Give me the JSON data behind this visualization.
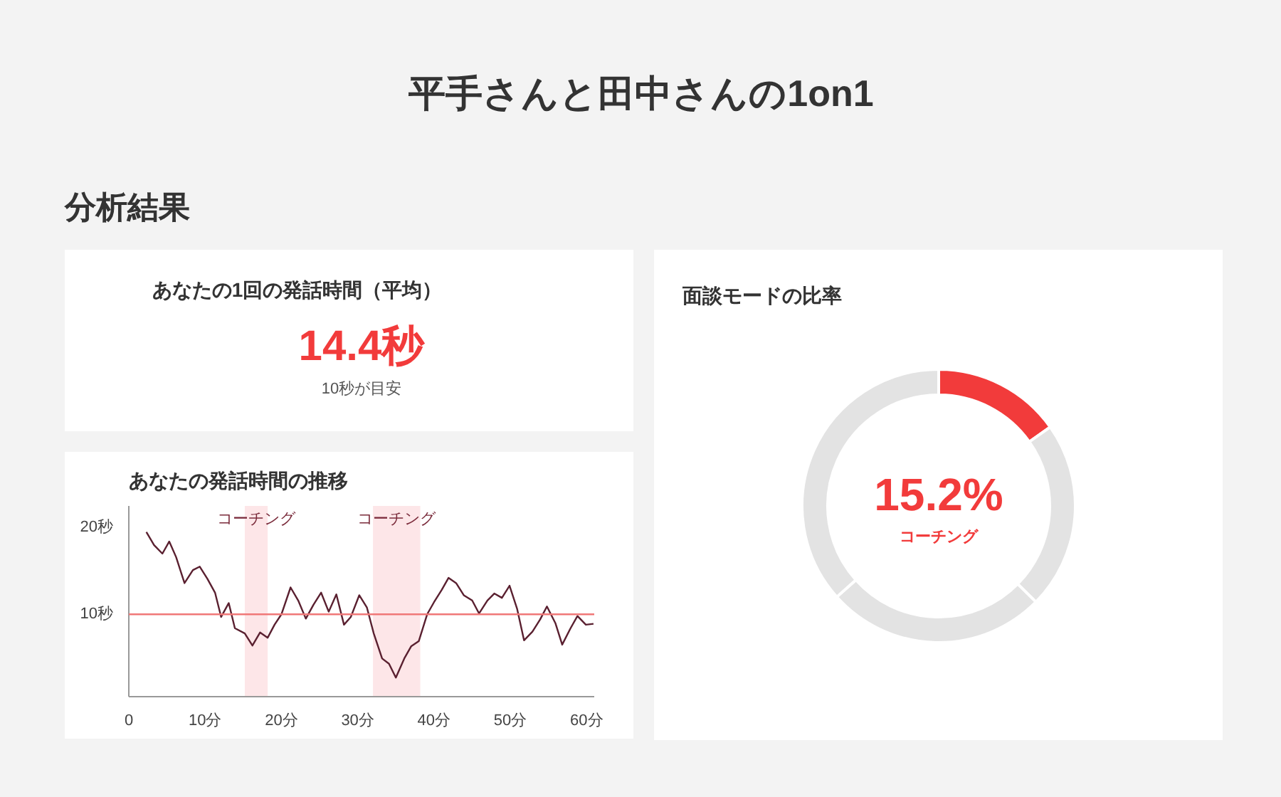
{
  "chart_data": [
    {
      "type": "other",
      "title": "平手さんと田中さんの1on1",
      "subtitle": "分析結果"
    },
    {
      "type": "other",
      "title": "あなたの1回の発話時間（平均）",
      "annotations": [
        "14.4秒",
        "10秒が目安"
      ]
    },
    {
      "type": "line",
      "title": "あなたの発話時間の推移",
      "x": [
        2.3,
        3.3,
        4.4,
        5.3,
        6.2,
        7.3,
        8.4,
        9.3,
        10.3,
        11.3,
        12.1,
        13.1,
        13.9,
        15.2,
        16.2,
        17.2,
        18.2,
        19.1,
        20.0,
        21.2,
        22.2,
        23.2,
        24.2,
        25.2,
        26.2,
        27.2,
        28.2,
        29.1,
        30.2,
        31.2,
        32.1,
        33.2,
        34.1,
        35.0,
        36.1,
        37.0,
        38.0,
        39.1,
        40.0,
        41.0,
        41.9,
        42.9,
        43.9,
        45.0,
        45.9,
        47.0,
        47.9,
        48.9,
        49.9,
        50.9,
        51.8,
        52.9,
        53.9,
        54.8,
        55.9,
        56.8,
        57.9,
        58.8,
        59.9,
        60.9
      ],
      "series": [
        {
          "color": "#5a2030",
          "values": [
            19.5,
            18.0,
            17.0,
            18.4,
            16.6,
            13.6,
            15.1,
            15.5,
            14.1,
            12.5,
            9.7,
            11.3,
            8.4,
            7.8,
            6.4,
            7.9,
            7.3,
            8.8,
            10.0,
            13.1,
            11.6,
            9.5,
            11.1,
            12.5,
            10.3,
            12.3,
            8.8,
            9.7,
            12.2,
            10.8,
            7.8,
            4.9,
            4.3,
            2.7,
            4.9,
            6.3,
            6.9,
            10.0,
            11.4,
            12.8,
            14.2,
            13.6,
            12.2,
            11.6,
            10.1,
            11.6,
            12.4,
            11.9,
            13.3,
            10.6,
            7.0,
            8.0,
            9.4,
            10.9,
            9.0,
            6.5,
            8.4,
            9.8,
            8.8,
            8.9
          ]
        }
      ],
      "xlim": [
        0,
        61
      ],
      "ylim": [
        0.5,
        22.5
      ],
      "xticks": [
        0,
        {
          "value": 10,
          "label": "10分"
        },
        {
          "value": 20,
          "label": "20分"
        },
        {
          "value": 30,
          "label": "30分"
        },
        {
          "value": 40,
          "label": "40分"
        },
        {
          "value": 50,
          "label": "50分"
        },
        {
          "value": 60,
          "label": "60分"
        }
      ],
      "yticks": [
        {
          "value": 10,
          "label": "10秒"
        },
        {
          "value": 20,
          "label": "20秒"
        }
      ],
      "ref_lines": [
        {
          "axis": "y",
          "value": 10,
          "label": null,
          "color": "#f07878"
        }
      ],
      "bands": [
        {
          "axis": "x",
          "from": 15.2,
          "to": 18.2,
          "label": "コーチング",
          "color": "#fde6e8"
        },
        {
          "axis": "x",
          "from": 32.0,
          "to": 38.2,
          "label": "コーチング",
          "color": "#fde6e8"
        }
      ]
    },
    {
      "type": "donut",
      "title": "面談モードの比率",
      "categories": [
        "コーチング",
        null,
        null,
        null
      ],
      "values": [
        15.2,
        22.2,
        26.0,
        36.6
      ],
      "colors": [
        "#f23b3b",
        "#e3e3e3",
        "#e3e3e3",
        "#e3e3e3"
      ],
      "value_labels": [
        "15.2%",
        null,
        null,
        null
      ]
    }
  ]
}
